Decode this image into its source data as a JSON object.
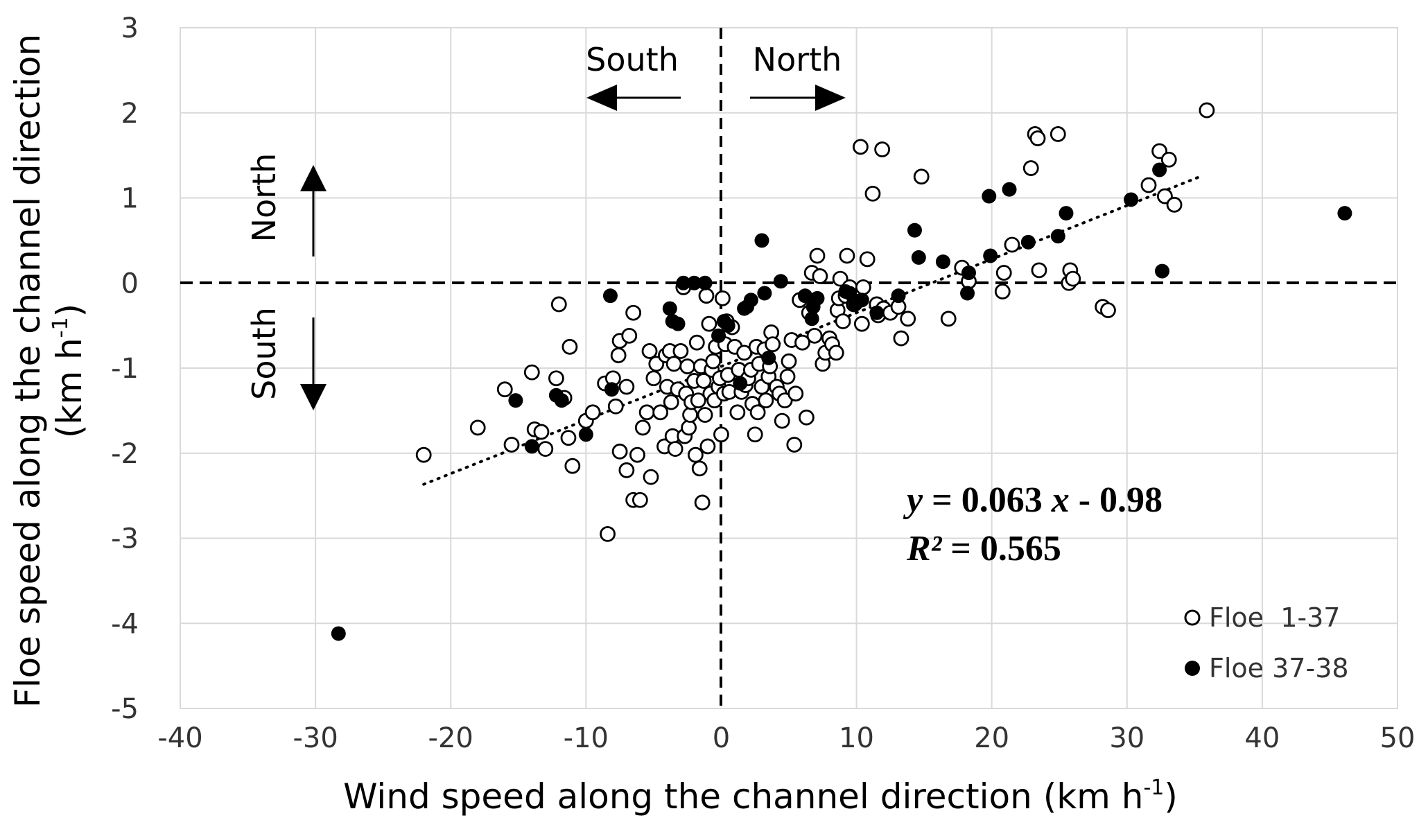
{
  "chart_data": {
    "type": "scatter",
    "xlabel": "Wind speed along the channel direction (km h-1)",
    "xlabel_main": "Wind speed along the channel direction (km h",
    "xlabel_sup": "-1",
    "xlabel_end": ")",
    "ylabel_line1": "Floe speed along the channel direction",
    "ylabel_line2_main": "(km h",
    "ylabel_line2_sup": "-1",
    "ylabel_line2_end": ")",
    "xlim": [
      -40,
      50
    ],
    "ylim": [
      -5,
      3
    ],
    "xticks": [
      "-40",
      "-30",
      "-20",
      "-10",
      "0",
      "10",
      "20",
      "30",
      "40",
      "50"
    ],
    "yticks": [
      "3",
      "2",
      "1",
      "0",
      "-1",
      "-2",
      "-3",
      "-4",
      "-5"
    ],
    "grid": true,
    "legend_position": "bottom-right",
    "direction_labels": {
      "x_negative": "South",
      "x_positive": "North",
      "y_positive": "North",
      "y_negative": "South"
    },
    "equation": {
      "line1_y": "y",
      "line1_eq": " = 0.063 ",
      "line1_x": "x",
      "line1_rest": " - 0.98",
      "line2_r": "R²",
      "line2_rest": " = 0.565"
    },
    "trendline": {
      "slope": 0.063,
      "intercept": -0.98,
      "x_range": [
        -22,
        35.5
      ]
    },
    "series": [
      {
        "name": "Floe  1-37",
        "marker": "open-circle",
        "color": "#000000",
        "points": [
          [
            -22,
            -2.02
          ],
          [
            -18,
            -1.7
          ],
          [
            -16,
            -1.25
          ],
          [
            -15.5,
            -1.9
          ],
          [
            -14,
            -1.05
          ],
          [
            -13.8,
            -1.72
          ],
          [
            -13.3,
            -1.75
          ],
          [
            -13,
            -1.95
          ],
          [
            -12,
            -0.25
          ],
          [
            -12.2,
            -1.12
          ],
          [
            -11.6,
            -1.35
          ],
          [
            -11.3,
            -1.82
          ],
          [
            -11.2,
            -0.75
          ],
          [
            -11,
            -2.15
          ],
          [
            -10,
            -1.62
          ],
          [
            -9.5,
            -1.52
          ],
          [
            -8.6,
            -1.18
          ],
          [
            -8.4,
            -2.95
          ],
          [
            -8,
            -1.12
          ],
          [
            -7.8,
            -1.45
          ],
          [
            -7.6,
            -0.85
          ],
          [
            -7.5,
            -0.68
          ],
          [
            -7.5,
            -1.98
          ],
          [
            -7,
            -1.22
          ],
          [
            -7,
            -2.2
          ],
          [
            -6.8,
            -0.62
          ],
          [
            -6.5,
            -2.55
          ],
          [
            -6.5,
            -0.35
          ],
          [
            -6.2,
            -2.02
          ],
          [
            -6,
            -2.55
          ],
          [
            -5.8,
            -1.7
          ],
          [
            -5.5,
            -1.52
          ],
          [
            -5.3,
            -0.8
          ],
          [
            -5.2,
            -2.28
          ],
          [
            -5,
            -1.12
          ],
          [
            -4.8,
            -0.95
          ],
          [
            -4.5,
            -1.52
          ],
          [
            -4.2,
            -1.92
          ],
          [
            -4.1,
            -0.85
          ],
          [
            -4,
            -1.22
          ],
          [
            -3.8,
            -0.8
          ],
          [
            -3.7,
            -1.4
          ],
          [
            -3.6,
            -1.8
          ],
          [
            -3.5,
            -0.95
          ],
          [
            -3.4,
            -1.95
          ],
          [
            -3.2,
            -1.25
          ],
          [
            -3,
            -0.8
          ],
          [
            -2.8,
            -0.05
          ],
          [
            -2.7,
            -1.8
          ],
          [
            -2.6,
            -1.3
          ],
          [
            -2.5,
            -0.98
          ],
          [
            -2.4,
            -1.7
          ],
          [
            -2.3,
            -1.55
          ],
          [
            -2.2,
            -1.4
          ],
          [
            -2,
            -1.15
          ],
          [
            -1.9,
            -2.02
          ],
          [
            -1.8,
            -0.7
          ],
          [
            -1.7,
            -1.38
          ],
          [
            -1.6,
            -2.18
          ],
          [
            -1.5,
            -0.98
          ],
          [
            -1.4,
            -2.58
          ],
          [
            -1.3,
            -1.15
          ],
          [
            -1.2,
            -1.55
          ],
          [
            -1.1,
            -0.15
          ],
          [
            -1,
            -1.92
          ],
          [
            -0.9,
            -0.48
          ],
          [
            -0.8,
            -1.3
          ],
          [
            -0.7,
            -1.02
          ],
          [
            -0.6,
            -0.92
          ],
          [
            -0.5,
            -1.38
          ],
          [
            -0.4,
            -0.75
          ],
          [
            -0.2,
            -1.22
          ],
          [
            -0.1,
            -1.12
          ],
          [
            0,
            -1.78
          ],
          [
            0.1,
            -0.18
          ],
          [
            0.2,
            -1.3
          ],
          [
            0.3,
            -0.72
          ],
          [
            0.4,
            -0.45
          ],
          [
            0.5,
            -1.08
          ],
          [
            0.6,
            -1.28
          ],
          [
            0.8,
            -0.52
          ],
          [
            1,
            -0.75
          ],
          [
            1.2,
            -1.52
          ],
          [
            1.3,
            -1.02
          ],
          [
            1.5,
            -1.28
          ],
          [
            1.7,
            -0.82
          ],
          [
            1.8,
            -1.2
          ],
          [
            2,
            -1.12
          ],
          [
            2.2,
            -1.02
          ],
          [
            2.3,
            -1.42
          ],
          [
            2.5,
            -1.78
          ],
          [
            2.6,
            -0.75
          ],
          [
            2.7,
            -1.52
          ],
          [
            2.8,
            -0.95
          ],
          [
            3,
            -1.22
          ],
          [
            3.2,
            -0.78
          ],
          [
            3.3,
            -1.38
          ],
          [
            3.5,
            -1.1
          ],
          [
            3.6,
            -0.98
          ],
          [
            3.7,
            -0.58
          ],
          [
            3.8,
            -0.72
          ],
          [
            4.1,
            -1.22
          ],
          [
            4.3,
            -1.3
          ],
          [
            4.5,
            -1.62
          ],
          [
            4.7,
            -1.38
          ],
          [
            4.9,
            -1.1
          ],
          [
            5,
            -0.92
          ],
          [
            5.2,
            -0.67
          ],
          [
            5.4,
            -1.9
          ],
          [
            5.5,
            -1.3
          ],
          [
            5.8,
            -0.2
          ],
          [
            6,
            -0.7
          ],
          [
            6.3,
            -1.58
          ],
          [
            6.5,
            -0.35
          ],
          [
            6.7,
            0.12
          ],
          [
            6.9,
            -0.62
          ],
          [
            7.1,
            0.32
          ],
          [
            7.3,
            0.08
          ],
          [
            7.5,
            -0.95
          ],
          [
            7.7,
            -0.82
          ],
          [
            8,
            -0.65
          ],
          [
            8.2,
            -0.72
          ],
          [
            8.5,
            -0.82
          ],
          [
            8.6,
            -0.32
          ],
          [
            8.7,
            -0.18
          ],
          [
            8.8,
            0.05
          ],
          [
            9,
            -0.45
          ],
          [
            9.2,
            -0.15
          ],
          [
            9.3,
            0.32
          ],
          [
            9.5,
            -0.05
          ],
          [
            9.8,
            -0.25
          ],
          [
            10,
            -0.22
          ],
          [
            10.3,
            1.6
          ],
          [
            10.4,
            -0.48
          ],
          [
            10.5,
            -0.05
          ],
          [
            10.8,
            0.28
          ],
          [
            11.2,
            1.05
          ],
          [
            11.5,
            -0.25
          ],
          [
            11.6,
            -0.38
          ],
          [
            11.9,
            1.57
          ],
          [
            12,
            -0.3
          ],
          [
            12.5,
            -0.35
          ],
          [
            13.1,
            -0.28
          ],
          [
            13.3,
            -0.65
          ],
          [
            13.8,
            -0.42
          ],
          [
            14.8,
            1.25
          ],
          [
            16.8,
            -0.42
          ],
          [
            17.8,
            0.18
          ],
          [
            18.3,
            0.02
          ],
          [
            20.8,
            -0.1
          ],
          [
            20.9,
            0.12
          ],
          [
            21.5,
            0.45
          ],
          [
            22.9,
            1.35
          ],
          [
            23.2,
            1.75
          ],
          [
            23.4,
            1.7
          ],
          [
            23.5,
            0.15
          ],
          [
            24.9,
            1.75
          ],
          [
            25.7,
            0.0
          ],
          [
            25.8,
            0.15
          ],
          [
            26,
            0.05
          ],
          [
            28.2,
            -0.28
          ],
          [
            28.6,
            -0.32
          ],
          [
            31.6,
            1.15
          ],
          [
            32.4,
            1.55
          ],
          [
            32.8,
            1.02
          ],
          [
            33.1,
            1.45
          ],
          [
            33.5,
            0.92
          ],
          [
            35.9,
            2.03
          ]
        ]
      },
      {
        "name": "Floe 37-38",
        "marker": "filled-circle",
        "color": "#000000",
        "points": [
          [
            -28.3,
            -4.12
          ],
          [
            -15.2,
            -1.38
          ],
          [
            -14.0,
            -1.92
          ],
          [
            -12.2,
            -1.32
          ],
          [
            -11.8,
            -1.38
          ],
          [
            -10,
            -1.78
          ],
          [
            -8.2,
            -0.15
          ],
          [
            -8.1,
            -1.25
          ],
          [
            -3.8,
            -0.3
          ],
          [
            -3.6,
            -0.45
          ],
          [
            -3.2,
            -0.48
          ],
          [
            -2.8,
            0.0
          ],
          [
            -2.0,
            0.0
          ],
          [
            -1.2,
            0.0
          ],
          [
            -0.2,
            -0.62
          ],
          [
            0.2,
            -0.45
          ],
          [
            0.5,
            -0.5
          ],
          [
            1.4,
            -1.18
          ],
          [
            1.7,
            -0.3
          ],
          [
            1.9,
            -0.28
          ],
          [
            2.2,
            -0.2
          ],
          [
            3.0,
            0.5
          ],
          [
            3.2,
            -0.12
          ],
          [
            3.5,
            -0.88
          ],
          [
            4.4,
            0.02
          ],
          [
            6.2,
            -0.15
          ],
          [
            6.7,
            -0.42
          ],
          [
            6.8,
            -0.28
          ],
          [
            7.1,
            -0.18
          ],
          [
            9.2,
            -0.1
          ],
          [
            9.5,
            -0.12
          ],
          [
            9.9,
            -0.25
          ],
          [
            10.4,
            -0.2
          ],
          [
            11.5,
            -0.35
          ],
          [
            13.1,
            -0.15
          ],
          [
            14.3,
            0.62
          ],
          [
            14.6,
            0.3
          ],
          [
            16.4,
            0.25
          ],
          [
            18.2,
            -0.12
          ],
          [
            18.3,
            0.12
          ],
          [
            19.8,
            1.02
          ],
          [
            19.9,
            0.32
          ],
          [
            21.3,
            1.1
          ],
          [
            22.7,
            0.48
          ],
          [
            24.9,
            0.55
          ],
          [
            25.5,
            0.82
          ],
          [
            30.3,
            0.98
          ],
          [
            32.4,
            1.33
          ],
          [
            32.6,
            0.14
          ],
          [
            46.1,
            0.82
          ]
        ]
      }
    ]
  }
}
